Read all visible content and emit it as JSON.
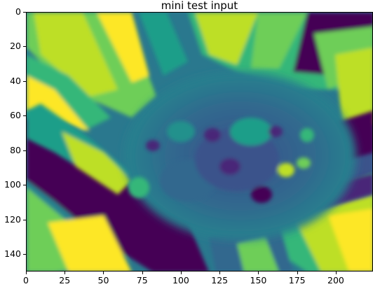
{
  "chart_data": {
    "type": "heatmap",
    "title": "mini test input",
    "colormap": "viridis",
    "xlim": [
      0,
      224
    ],
    "ylim": [
      150,
      0
    ],
    "x_ticks": [
      0,
      25,
      50,
      75,
      100,
      125,
      150,
      175,
      200
    ],
    "y_ticks": [
      0,
      20,
      40,
      60,
      80,
      100,
      120,
      140
    ],
    "x_tick_labels": [
      "0",
      "25",
      "50",
      "75",
      "100",
      "125",
      "150",
      "175",
      "200"
    ],
    "y_tick_labels": [
      "0",
      "20",
      "40",
      "60",
      "80",
      "100",
      "120",
      "140"
    ],
    "xlabel": "",
    "ylabel": ""
  }
}
